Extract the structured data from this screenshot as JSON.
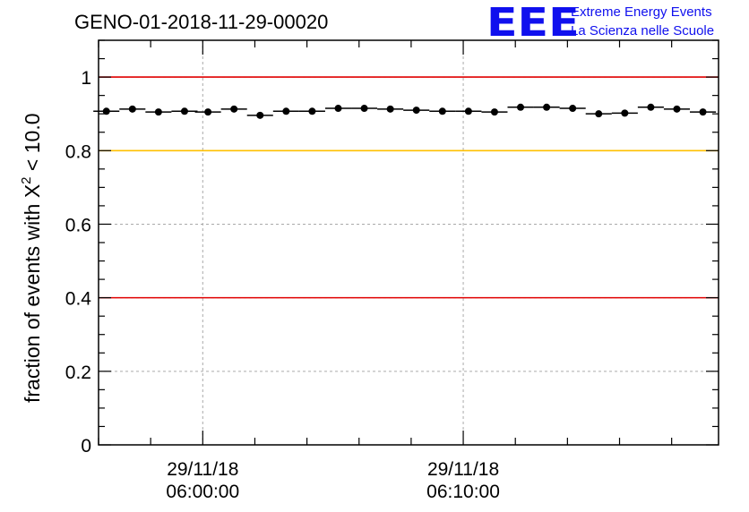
{
  "chart_title": "GENO-01-2018-11-29-00020",
  "logo": {
    "letters": "EEE",
    "line1": "Extreme Energy Events",
    "line2": "La Scienza nelle Scuole",
    "color": "#1010ee"
  },
  "chart_data": {
    "type": "scatter",
    "title": "GENO-01-2018-11-29-00020",
    "ylabel_main": "fraction of events with X",
    "ylabel_sup": "2",
    "ylabel_tail": " < 10.0",
    "xlabel": "",
    "ylim": [
      0,
      1.1
    ],
    "yticks": [
      {
        "value": 0,
        "label": "0"
      },
      {
        "value": 0.2,
        "label": "0.2"
      },
      {
        "value": 0.4,
        "label": "0.4"
      },
      {
        "value": 0.6,
        "label": "0.6"
      },
      {
        "value": 0.8,
        "label": "0.8"
      },
      {
        "value": 1,
        "label": "1"
      }
    ],
    "xlim_minutes": [
      -4,
      19.8
    ],
    "xticks": [
      {
        "minutes": 0,
        "date": "29/11/18",
        "time": "06:00:00"
      },
      {
        "minutes": 10,
        "date": "29/11/18",
        "time": "06:10:00"
      }
    ],
    "grid": true,
    "x_unit": "minutes after 29/11/18 06:00:00",
    "reference_lines": [
      {
        "y": 1.0,
        "color": "#e00000"
      },
      {
        "y": 0.8,
        "color": "#ffc000"
      },
      {
        "y": 0.4,
        "color": "#e00000"
      }
    ],
    "bin_width_minutes": 1.0,
    "series": [
      {
        "x": [
          -3.7,
          -2.7,
          -1.7,
          -0.7,
          0.2,
          1.2,
          2.2,
          3.2,
          4.2,
          5.2,
          6.2,
          7.2,
          8.2,
          9.2,
          10.2,
          11.2,
          12.2,
          13.2,
          14.2,
          15.2,
          16.2,
          17.2,
          18.2,
          19.2
        ],
        "y": [
          0.907,
          0.913,
          0.905,
          0.907,
          0.905,
          0.913,
          0.896,
          0.907,
          0.907,
          0.915,
          0.915,
          0.913,
          0.91,
          0.907,
          0.907,
          0.905,
          0.918,
          0.918,
          0.915,
          0.9,
          0.902,
          0.918,
          0.913,
          0.905
        ],
        "color": "#000000"
      }
    ]
  }
}
